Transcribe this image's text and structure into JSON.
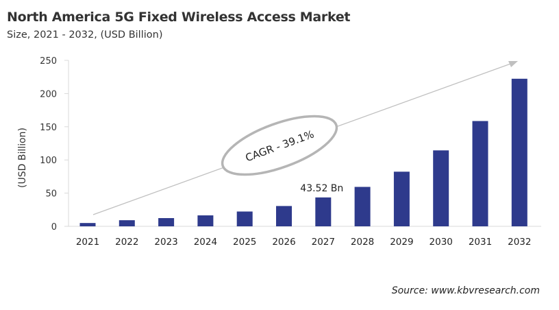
{
  "header": {
    "title": "North America 5G Fixed Wireless Access Market",
    "subtitle": "Size, 2021 - 2032, (USD Billion)"
  },
  "footer": {
    "source": "Source: www.kbvresearch.com"
  },
  "chart_data": {
    "type": "bar",
    "title": "North America 5G Fixed Wireless Access Market",
    "subtitle": "Size, 2021 - 2032, (USD Billion)",
    "xlabel": "",
    "ylabel": "(USD Billion)",
    "ylim": [
      0,
      250
    ],
    "yticks": [
      0,
      50,
      100,
      150,
      200,
      250
    ],
    "grid": false,
    "categories": [
      "2021",
      "2022",
      "2023",
      "2024",
      "2025",
      "2026",
      "2027",
      "2028",
      "2029",
      "2030",
      "2031",
      "2032"
    ],
    "values": [
      5.0,
      9.2,
      12.4,
      16.5,
      22.3,
      30.6,
      43.52,
      59.4,
      82.3,
      114.4,
      158.6,
      222.3
    ],
    "bar_color": "#2e3a8c",
    "data_labels": [
      {
        "category": "2027",
        "text": "43.52 Bn"
      }
    ],
    "annotation": {
      "text": "CAGR - 39.1%",
      "style": "ellipse on trend arrow",
      "color": "#b0b0b0"
    }
  }
}
